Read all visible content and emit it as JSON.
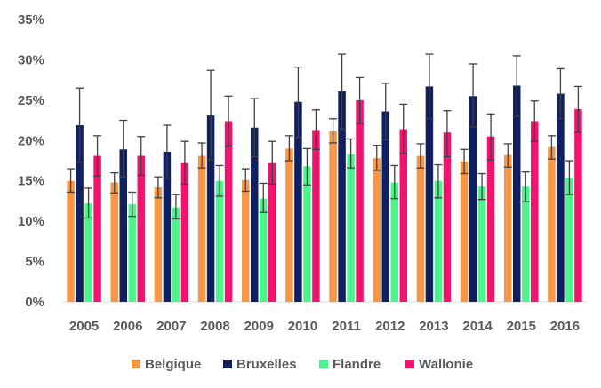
{
  "chart_data": {
    "type": "bar",
    "categories": [
      "2005",
      "2006",
      "2007",
      "2008",
      "2009",
      "2010",
      "2011",
      "2012",
      "2013",
      "2014",
      "2015",
      "2016"
    ],
    "series": [
      {
        "name": "Belgique",
        "color": "#F79646",
        "values": [
          15.0,
          14.8,
          14.2,
          18.1,
          15.1,
          19.0,
          21.2,
          17.8,
          18.1,
          17.4,
          18.2,
          19.2
        ],
        "err_low": [
          13.6,
          13.5,
          12.9,
          16.6,
          13.7,
          17.5,
          19.7,
          16.3,
          16.6,
          15.9,
          16.7,
          17.7
        ],
        "err_high": [
          16.5,
          16.0,
          15.5,
          19.7,
          16.5,
          20.6,
          22.7,
          19.4,
          19.6,
          18.9,
          19.6,
          20.6
        ]
      },
      {
        "name": "Bruxelles",
        "color": "#0F1F5F",
        "values": [
          21.9,
          18.9,
          18.6,
          23.1,
          21.6,
          24.8,
          26.1,
          23.6,
          26.7,
          25.5,
          26.8,
          25.8
        ],
        "err_low": [
          17.3,
          15.5,
          15.3,
          17.6,
          18.0,
          20.4,
          21.4,
          20.1,
          22.7,
          21.7,
          23.0,
          22.7
        ],
        "err_high": [
          26.5,
          22.5,
          21.9,
          28.7,
          25.2,
          29.1,
          30.7,
          27.1,
          30.7,
          29.5,
          30.5,
          28.9
        ]
      },
      {
        "name": "Flandre",
        "color": "#4CF58C",
        "values": [
          12.2,
          12.1,
          11.7,
          15.0,
          12.8,
          16.8,
          18.3,
          14.8,
          15.0,
          14.3,
          14.3,
          15.4
        ],
        "err_low": [
          10.4,
          10.6,
          10.3,
          13.1,
          11.1,
          14.5,
          16.6,
          12.8,
          12.9,
          12.7,
          12.4,
          13.3
        ],
        "err_high": [
          14.1,
          13.6,
          13.3,
          16.9,
          14.7,
          19.0,
          20.2,
          16.9,
          17.0,
          15.9,
          16.1,
          17.5
        ]
      },
      {
        "name": "Wallonie",
        "color": "#F0146E",
        "values": [
          18.1,
          18.1,
          17.2,
          22.4,
          17.2,
          21.3,
          25.0,
          21.4,
          21.0,
          20.5,
          22.4,
          23.9
        ],
        "err_low": [
          15.6,
          15.7,
          14.6,
          19.3,
          14.6,
          18.9,
          22.1,
          18.4,
          18.0,
          17.6,
          19.9,
          21.0
        ],
        "err_high": [
          20.6,
          20.5,
          19.9,
          25.5,
          19.9,
          23.8,
          27.8,
          24.5,
          23.7,
          23.3,
          24.9,
          26.7
        ]
      }
    ],
    "y_ticks": [
      "0%",
      "5%",
      "10%",
      "15%",
      "20%",
      "25%",
      "30%",
      "35%"
    ],
    "ylim": [
      0,
      35
    ],
    "grid": false,
    "legend": "bottom",
    "error_bars": true,
    "error_bar_color": "#404040"
  }
}
